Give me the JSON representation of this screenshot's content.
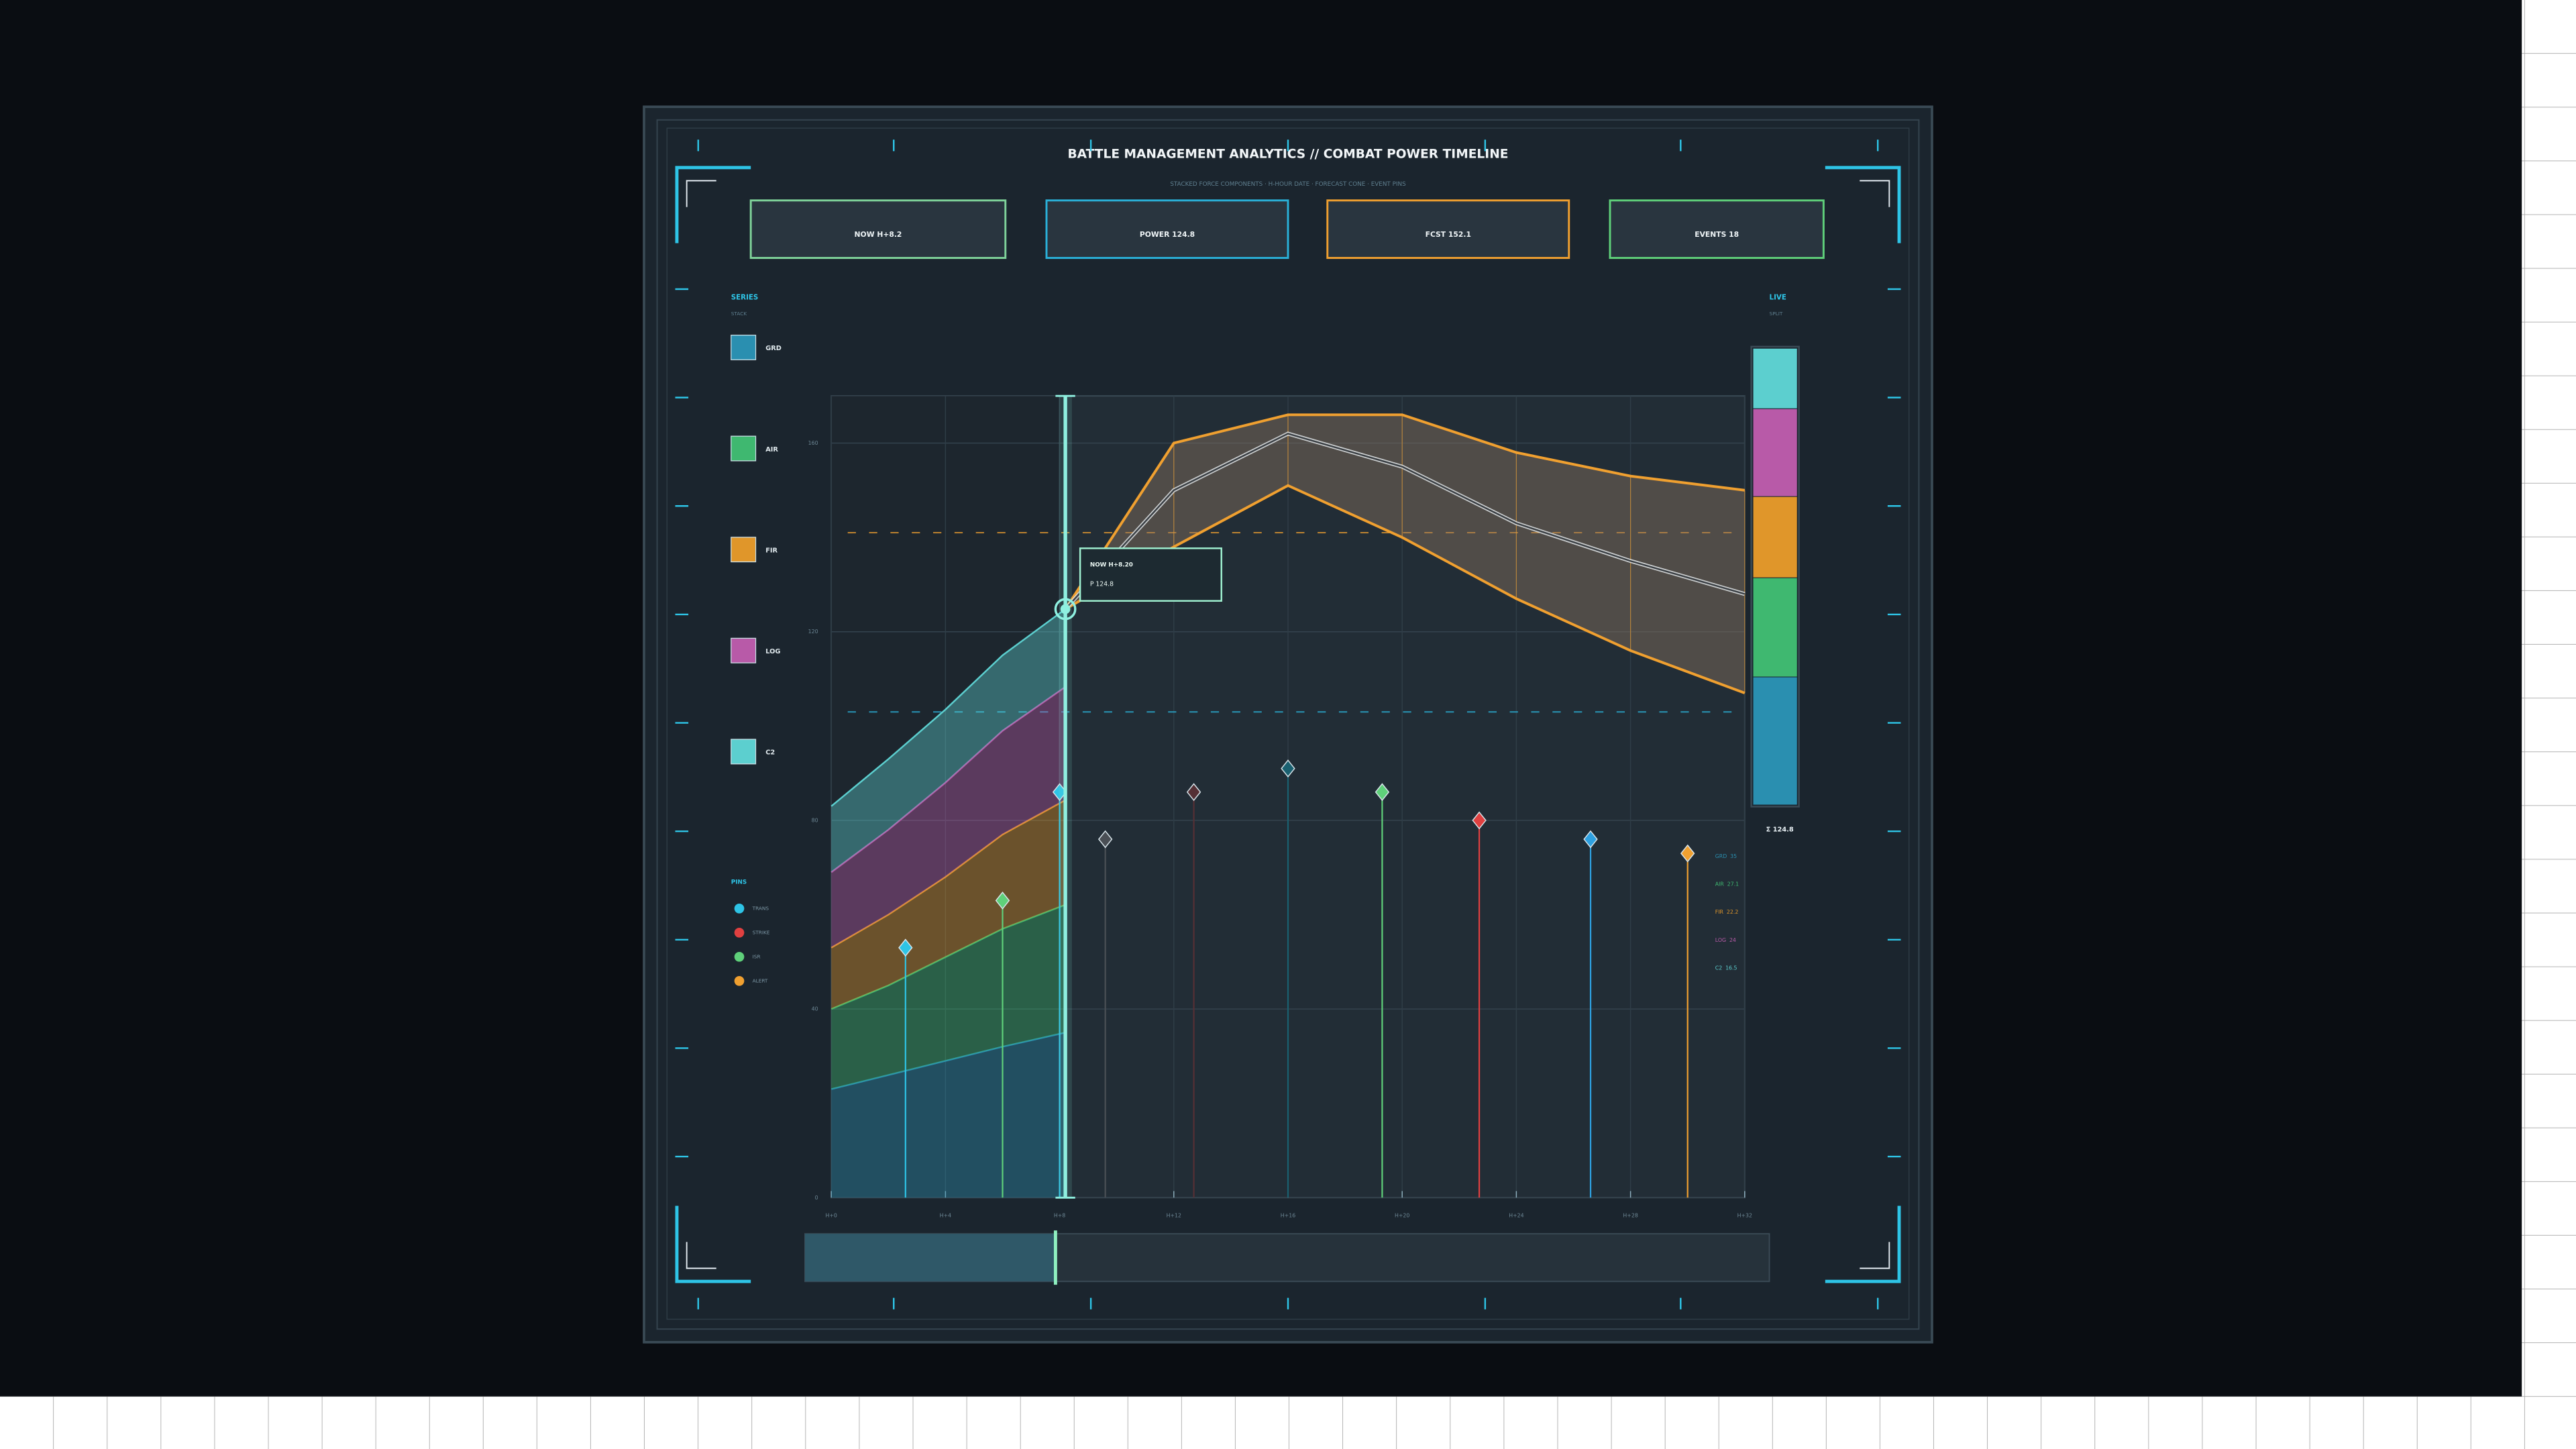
{
  "header": {
    "title": "BATTLE MANAGEMENT ANALYTICS  //  COMBAT POWER TIMELINE",
    "subtitle": "STACKED FORCE COMPONENTS · H-HOUR DATE · FORECAST CONE · EVENT PINS"
  },
  "kpis": [
    {
      "text": "NOW  H+8.2",
      "color": "#7fd39a"
    },
    {
      "text": "POWER  124.8",
      "color": "#2ab0d8"
    },
    {
      "text": "FCST  152.1",
      "color": "#f0a030"
    },
    {
      "text": "EVENTS  18",
      "color": "#5fd07a"
    }
  ],
  "legend": {
    "title": "SERIES",
    "subtitle": "STACK",
    "pins_title": "PINS",
    "pins": [
      {
        "name": "TRANS",
        "color": "#2ec4e6"
      },
      {
        "name": "STRIKE",
        "color": "#e04040"
      },
      {
        "name": "ISR",
        "color": "#5fd07a"
      },
      {
        "name": "ALERT",
        "color": "#f0a030"
      }
    ]
  },
  "live": {
    "title": "LIVE",
    "subtitle": "SPLIT",
    "total": "Σ 124.8"
  },
  "tooltip": {
    "line1": "NOW H+8.20",
    "line2": "P 124.8"
  },
  "chart_data": {
    "type": "stacked-area",
    "x": [
      0,
      2,
      4,
      6,
      8.2
    ],
    "xlim": [
      0,
      32
    ],
    "xticks": [
      {
        "value": 0,
        "label": "H+0"
      },
      {
        "value": 4,
        "label": "H+4"
      },
      {
        "value": 8,
        "label": "H+8"
      },
      {
        "value": 12,
        "label": "H+12"
      },
      {
        "value": 16,
        "label": "H+16"
      },
      {
        "value": 20,
        "label": "H+20"
      },
      {
        "value": 24,
        "label": "H+24"
      },
      {
        "value": 28,
        "label": "H+28"
      },
      {
        "value": 32,
        "label": "H+32"
      }
    ],
    "ylim": [
      0,
      170
    ],
    "yticks": [
      0,
      40,
      80,
      120,
      160
    ],
    "grid": true,
    "now": 8.2,
    "series": [
      {
        "name": "GRD",
        "color": "#2a8fb0",
        "values": [
          23,
          26,
          29,
          32,
          35
        ]
      },
      {
        "name": "AIR",
        "color": "#3fb870",
        "values": [
          17,
          19,
          22,
          25,
          27.1
        ]
      },
      {
        "name": "FIR",
        "color": "#e0962a",
        "values": [
          13,
          15,
          17,
          20,
          22.2
        ]
      },
      {
        "name": "LOG",
        "color": "#b85aa8",
        "values": [
          16,
          18,
          20,
          22,
          24
        ]
      },
      {
        "name": "C2",
        "color": "#5ccfcf",
        "values": [
          14,
          15,
          15.5,
          16,
          16.5
        ]
      }
    ],
    "forecast": {
      "color": "#f0a030",
      "x": [
        8.2,
        12,
        16,
        20,
        24,
        28,
        32
      ],
      "upper": [
        124.8,
        160,
        166,
        166,
        158,
        153,
        150
      ],
      "center": [
        124.8,
        150,
        162,
        155,
        143,
        135,
        128
      ],
      "lower": [
        124.8,
        138,
        151,
        140,
        127,
        116,
        107
      ]
    },
    "thresholds": [
      141,
      103
    ],
    "events": {
      "x": [
        2.6,
        6.0,
        8.0,
        9.6,
        12.7,
        16.0,
        19.3,
        22.7,
        26.6,
        30.0
      ],
      "y": [
        53,
        63,
        86,
        76,
        86,
        91,
        86,
        80,
        76,
        73
      ],
      "colors": [
        "#2ec4e6",
        "#5fd07a",
        "#2ec4e6",
        "#4a4f55",
        "#553035",
        "#1a6070",
        "#5fd07a",
        "#e04040",
        "#2ea0e0",
        "#f0a030"
      ]
    }
  }
}
